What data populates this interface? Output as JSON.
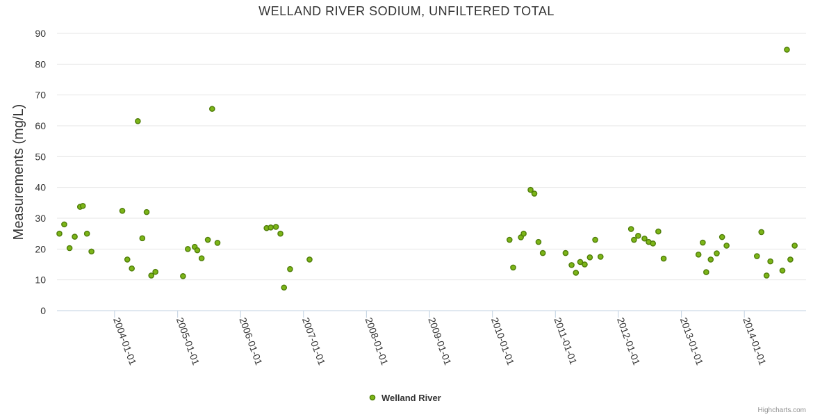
{
  "chart_data": {
    "type": "scatter",
    "title": "WELLAND RIVER SODIUM, UNFILTERED TOTAL",
    "xlabel": "",
    "ylabel": "Measurements (mg/L)",
    "ylim": [
      0,
      90
    ],
    "yticks": [
      0,
      10,
      20,
      30,
      40,
      50,
      60,
      70,
      80,
      90
    ],
    "xlim": [
      "2003-02-01",
      "2014-12-25"
    ],
    "xticks": [
      "2004-01-01",
      "2005-01-01",
      "2006-01-01",
      "2007-01-01",
      "2008-01-01",
      "2009-01-01",
      "2010-01-01",
      "2011-01-01",
      "2012-01-01",
      "2013-01-01",
      "2014-01-01"
    ],
    "grid": true,
    "legend": "bottom-center",
    "series": [
      {
        "name": "Welland River",
        "color": "#7cb518",
        "points": [
          {
            "x": "2003-02-15",
            "y": 25.0
          },
          {
            "x": "2003-03-15",
            "y": 28.0
          },
          {
            "x": "2003-04-15",
            "y": 20.3
          },
          {
            "x": "2003-05-15",
            "y": 24.0
          },
          {
            "x": "2003-06-15",
            "y": 33.7
          },
          {
            "x": "2003-07-01",
            "y": 34.0
          },
          {
            "x": "2003-07-25",
            "y": 25.0
          },
          {
            "x": "2003-08-20",
            "y": 19.2
          },
          {
            "x": "2004-02-15",
            "y": 32.4
          },
          {
            "x": "2004-03-15",
            "y": 16.6
          },
          {
            "x": "2004-04-10",
            "y": 13.7
          },
          {
            "x": "2004-05-15",
            "y": 61.5
          },
          {
            "x": "2004-06-10",
            "y": 23.5
          },
          {
            "x": "2004-07-05",
            "y": 32.0
          },
          {
            "x": "2004-08-01",
            "y": 11.4
          },
          {
            "x": "2004-08-25",
            "y": 12.6
          },
          {
            "x": "2005-02-01",
            "y": 11.2
          },
          {
            "x": "2005-03-01",
            "y": 20.0
          },
          {
            "x": "2005-04-10",
            "y": 20.7
          },
          {
            "x": "2005-04-25",
            "y": 19.6
          },
          {
            "x": "2005-05-20",
            "y": 17.0
          },
          {
            "x": "2005-06-25",
            "y": 23.0
          },
          {
            "x": "2005-07-20",
            "y": 65.5
          },
          {
            "x": "2005-08-20",
            "y": 22.0
          },
          {
            "x": "2006-06-01",
            "y": 26.8
          },
          {
            "x": "2006-06-25",
            "y": 27.0
          },
          {
            "x": "2006-07-25",
            "y": 27.2
          },
          {
            "x": "2006-08-20",
            "y": 25.0
          },
          {
            "x": "2006-09-10",
            "y": 7.5
          },
          {
            "x": "2006-10-15",
            "y": 13.5
          },
          {
            "x": "2007-02-05",
            "y": 16.6
          },
          {
            "x": "2010-04-10",
            "y": 23.0
          },
          {
            "x": "2010-05-01",
            "y": 14.0
          },
          {
            "x": "2010-06-15",
            "y": 23.8
          },
          {
            "x": "2010-07-01",
            "y": 25.0
          },
          {
            "x": "2010-08-10",
            "y": 39.2
          },
          {
            "x": "2010-09-01",
            "y": 38.0
          },
          {
            "x": "2010-09-25",
            "y": 22.3
          },
          {
            "x": "2010-10-20",
            "y": 18.7
          },
          {
            "x": "2011-03-01",
            "y": 18.7
          },
          {
            "x": "2011-04-05",
            "y": 14.8
          },
          {
            "x": "2011-04-30",
            "y": 12.3
          },
          {
            "x": "2011-05-25",
            "y": 15.8
          },
          {
            "x": "2011-06-20",
            "y": 15.0
          },
          {
            "x": "2011-07-20",
            "y": 17.3
          },
          {
            "x": "2011-08-20",
            "y": 23.0
          },
          {
            "x": "2011-09-20",
            "y": 17.5
          },
          {
            "x": "2012-03-15",
            "y": 26.5
          },
          {
            "x": "2012-04-01",
            "y": 23.0
          },
          {
            "x": "2012-04-25",
            "y": 24.3
          },
          {
            "x": "2012-06-01",
            "y": 23.4
          },
          {
            "x": "2012-06-25",
            "y": 22.3
          },
          {
            "x": "2012-07-20",
            "y": 21.8
          },
          {
            "x": "2012-08-20",
            "y": 25.7
          },
          {
            "x": "2012-09-20",
            "y": 16.9
          },
          {
            "x": "2013-04-10",
            "y": 18.2
          },
          {
            "x": "2013-05-05",
            "y": 22.1
          },
          {
            "x": "2013-05-25",
            "y": 12.5
          },
          {
            "x": "2013-06-20",
            "y": 16.6
          },
          {
            "x": "2013-07-25",
            "y": 18.6
          },
          {
            "x": "2013-08-25",
            "y": 23.9
          },
          {
            "x": "2013-09-20",
            "y": 21.1
          },
          {
            "x": "2014-03-15",
            "y": 17.7
          },
          {
            "x": "2014-04-10",
            "y": 25.5
          },
          {
            "x": "2014-05-10",
            "y": 11.4
          },
          {
            "x": "2014-06-01",
            "y": 16.0
          },
          {
            "x": "2014-08-10",
            "y": 13.0
          },
          {
            "x": "2014-09-05",
            "y": 84.7
          },
          {
            "x": "2014-09-25",
            "y": 16.6
          },
          {
            "x": "2014-10-20",
            "y": 21.1
          }
        ]
      }
    ]
  },
  "credits": "Highcharts.com"
}
